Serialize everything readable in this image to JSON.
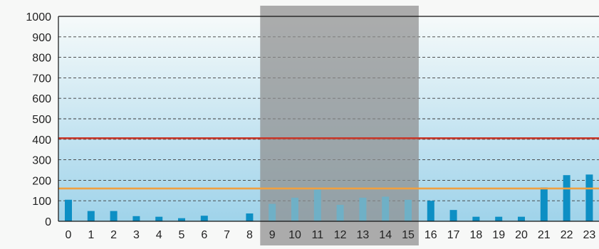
{
  "chart_data": {
    "type": "bar",
    "title": "",
    "xlabel": "",
    "ylabel": "",
    "categories": [
      "0",
      "1",
      "2",
      "3",
      "4",
      "5",
      "6",
      "7",
      "8",
      "9",
      "10",
      "11",
      "12",
      "13",
      "14",
      "15",
      "16",
      "17",
      "18",
      "19",
      "20",
      "21",
      "22",
      "23"
    ],
    "values": [
      105,
      50,
      50,
      25,
      22,
      15,
      27,
      0,
      38,
      85,
      115,
      155,
      80,
      115,
      120,
      105,
      100,
      55,
      22,
      22,
      22,
      165,
      225,
      228
    ],
    "ylim": [
      0,
      1000
    ],
    "yticks": [
      "0",
      "100",
      "200",
      "300",
      "400",
      "500",
      "600",
      "700",
      "800",
      "900",
      "1000"
    ],
    "grid": "horizontal dashed",
    "reference_lines": [
      {
        "value": 405,
        "color": "#c8382a"
      },
      {
        "value": 160,
        "color": "#f0a040"
      }
    ],
    "highlight_range": {
      "from": "9",
      "to": "15",
      "color": "#8e8e8e"
    },
    "colors": {
      "bar": "#0d8fc4",
      "bar_in_highlight": "#6fb0c6",
      "plot_top": "#f6fafa",
      "plot_bottom": "#9fd3ea",
      "axis": "#111111",
      "grid": "#3a3a3a"
    }
  }
}
